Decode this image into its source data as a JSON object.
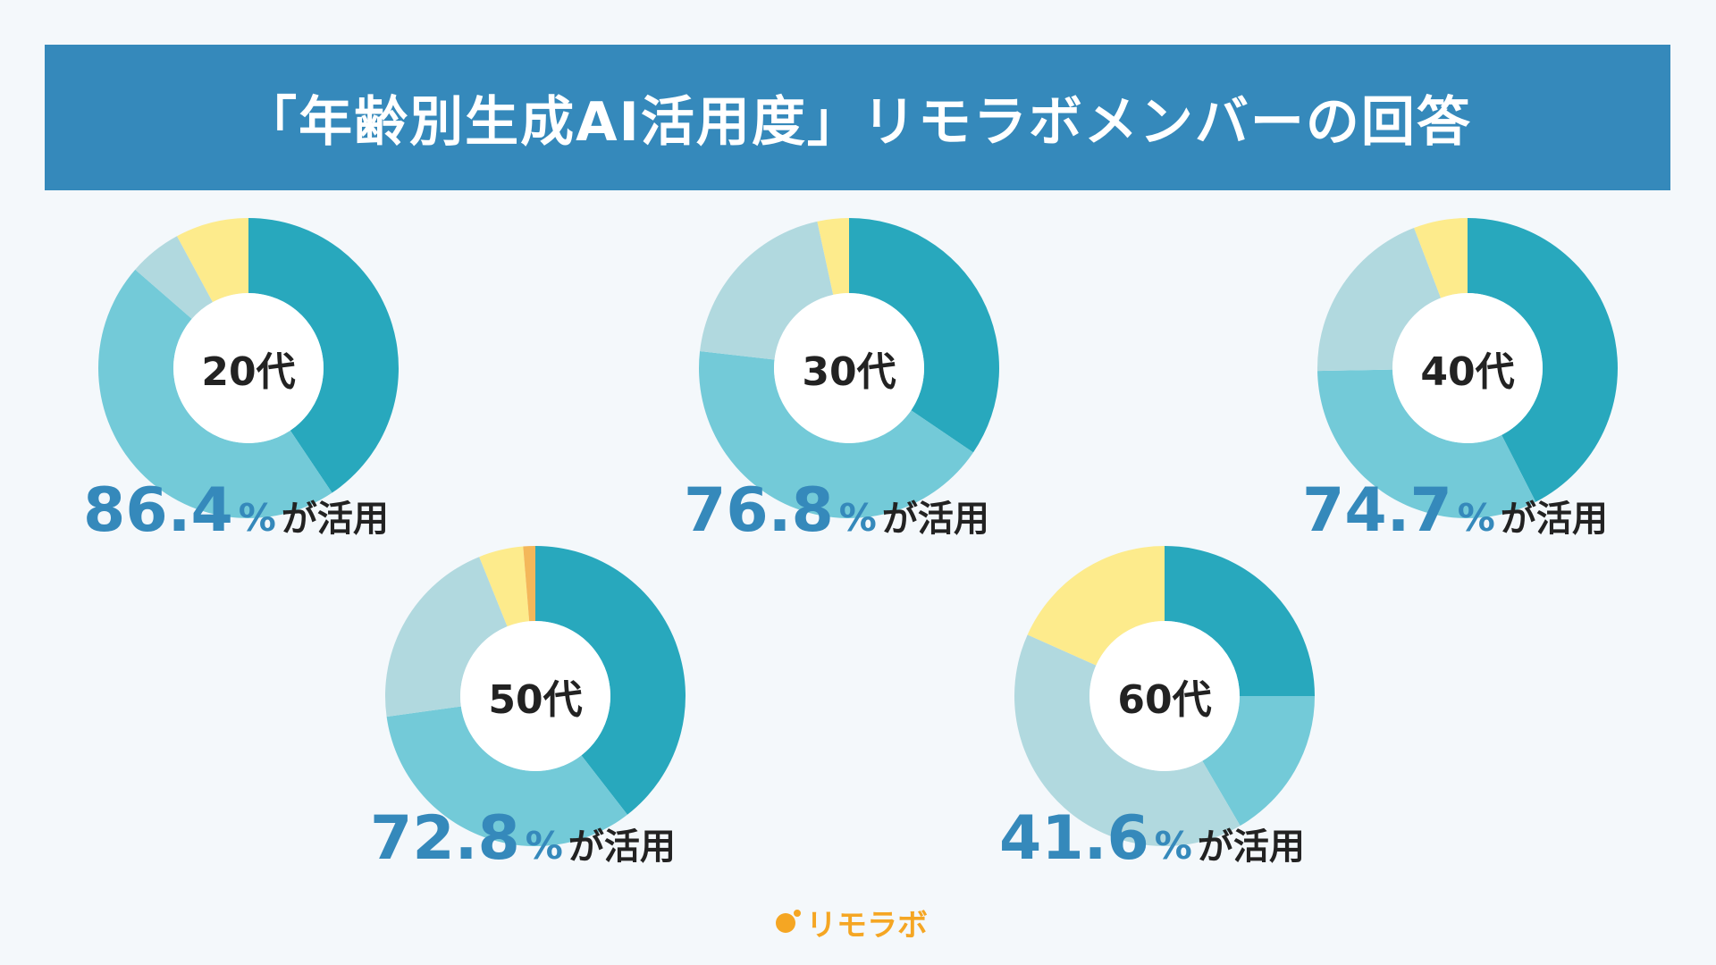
{
  "title": "「年齢別生成AI活用度」リモラボメンバーの回答",
  "colors": {
    "header": "#3589bb",
    "stat": "#3589bb",
    "segments": [
      "#28a8bd",
      "#73cad8",
      "#b1d9df",
      "#fdeb8c",
      "#f4b75a"
    ]
  },
  "chart_data": [
    {
      "type": "pie",
      "center_label": "20代",
      "stat_value": "86.4",
      "stat_unit": "%",
      "stat_suffix": "が活用",
      "values": [
        40.6,
        45.8,
        5.7,
        7.9,
        0
      ]
    },
    {
      "type": "pie",
      "center_label": "30代",
      "stat_value": "76.8",
      "stat_unit": "%",
      "stat_suffix": "が活用",
      "values": [
        34.5,
        42.3,
        19.8,
        3.4,
        0
      ]
    },
    {
      "type": "pie",
      "center_label": "40代",
      "stat_value": "74.7",
      "stat_unit": "%",
      "stat_suffix": "が活用",
      "values": [
        42.5,
        32.2,
        19.5,
        5.8,
        0
      ]
    },
    {
      "type": "pie",
      "center_label": "50代",
      "stat_value": "72.8",
      "stat_unit": "%",
      "stat_suffix": "が活用",
      "values": [
        39.5,
        33.3,
        21.1,
        4.8,
        1.3
      ]
    },
    {
      "type": "pie",
      "center_label": "60代",
      "stat_value": "41.6",
      "stat_unit": "%",
      "stat_suffix": "が活用",
      "values": [
        25.0,
        16.6,
        40.1,
        18.3,
        0
      ]
    }
  ],
  "logo": {
    "text": "リモラボ"
  }
}
